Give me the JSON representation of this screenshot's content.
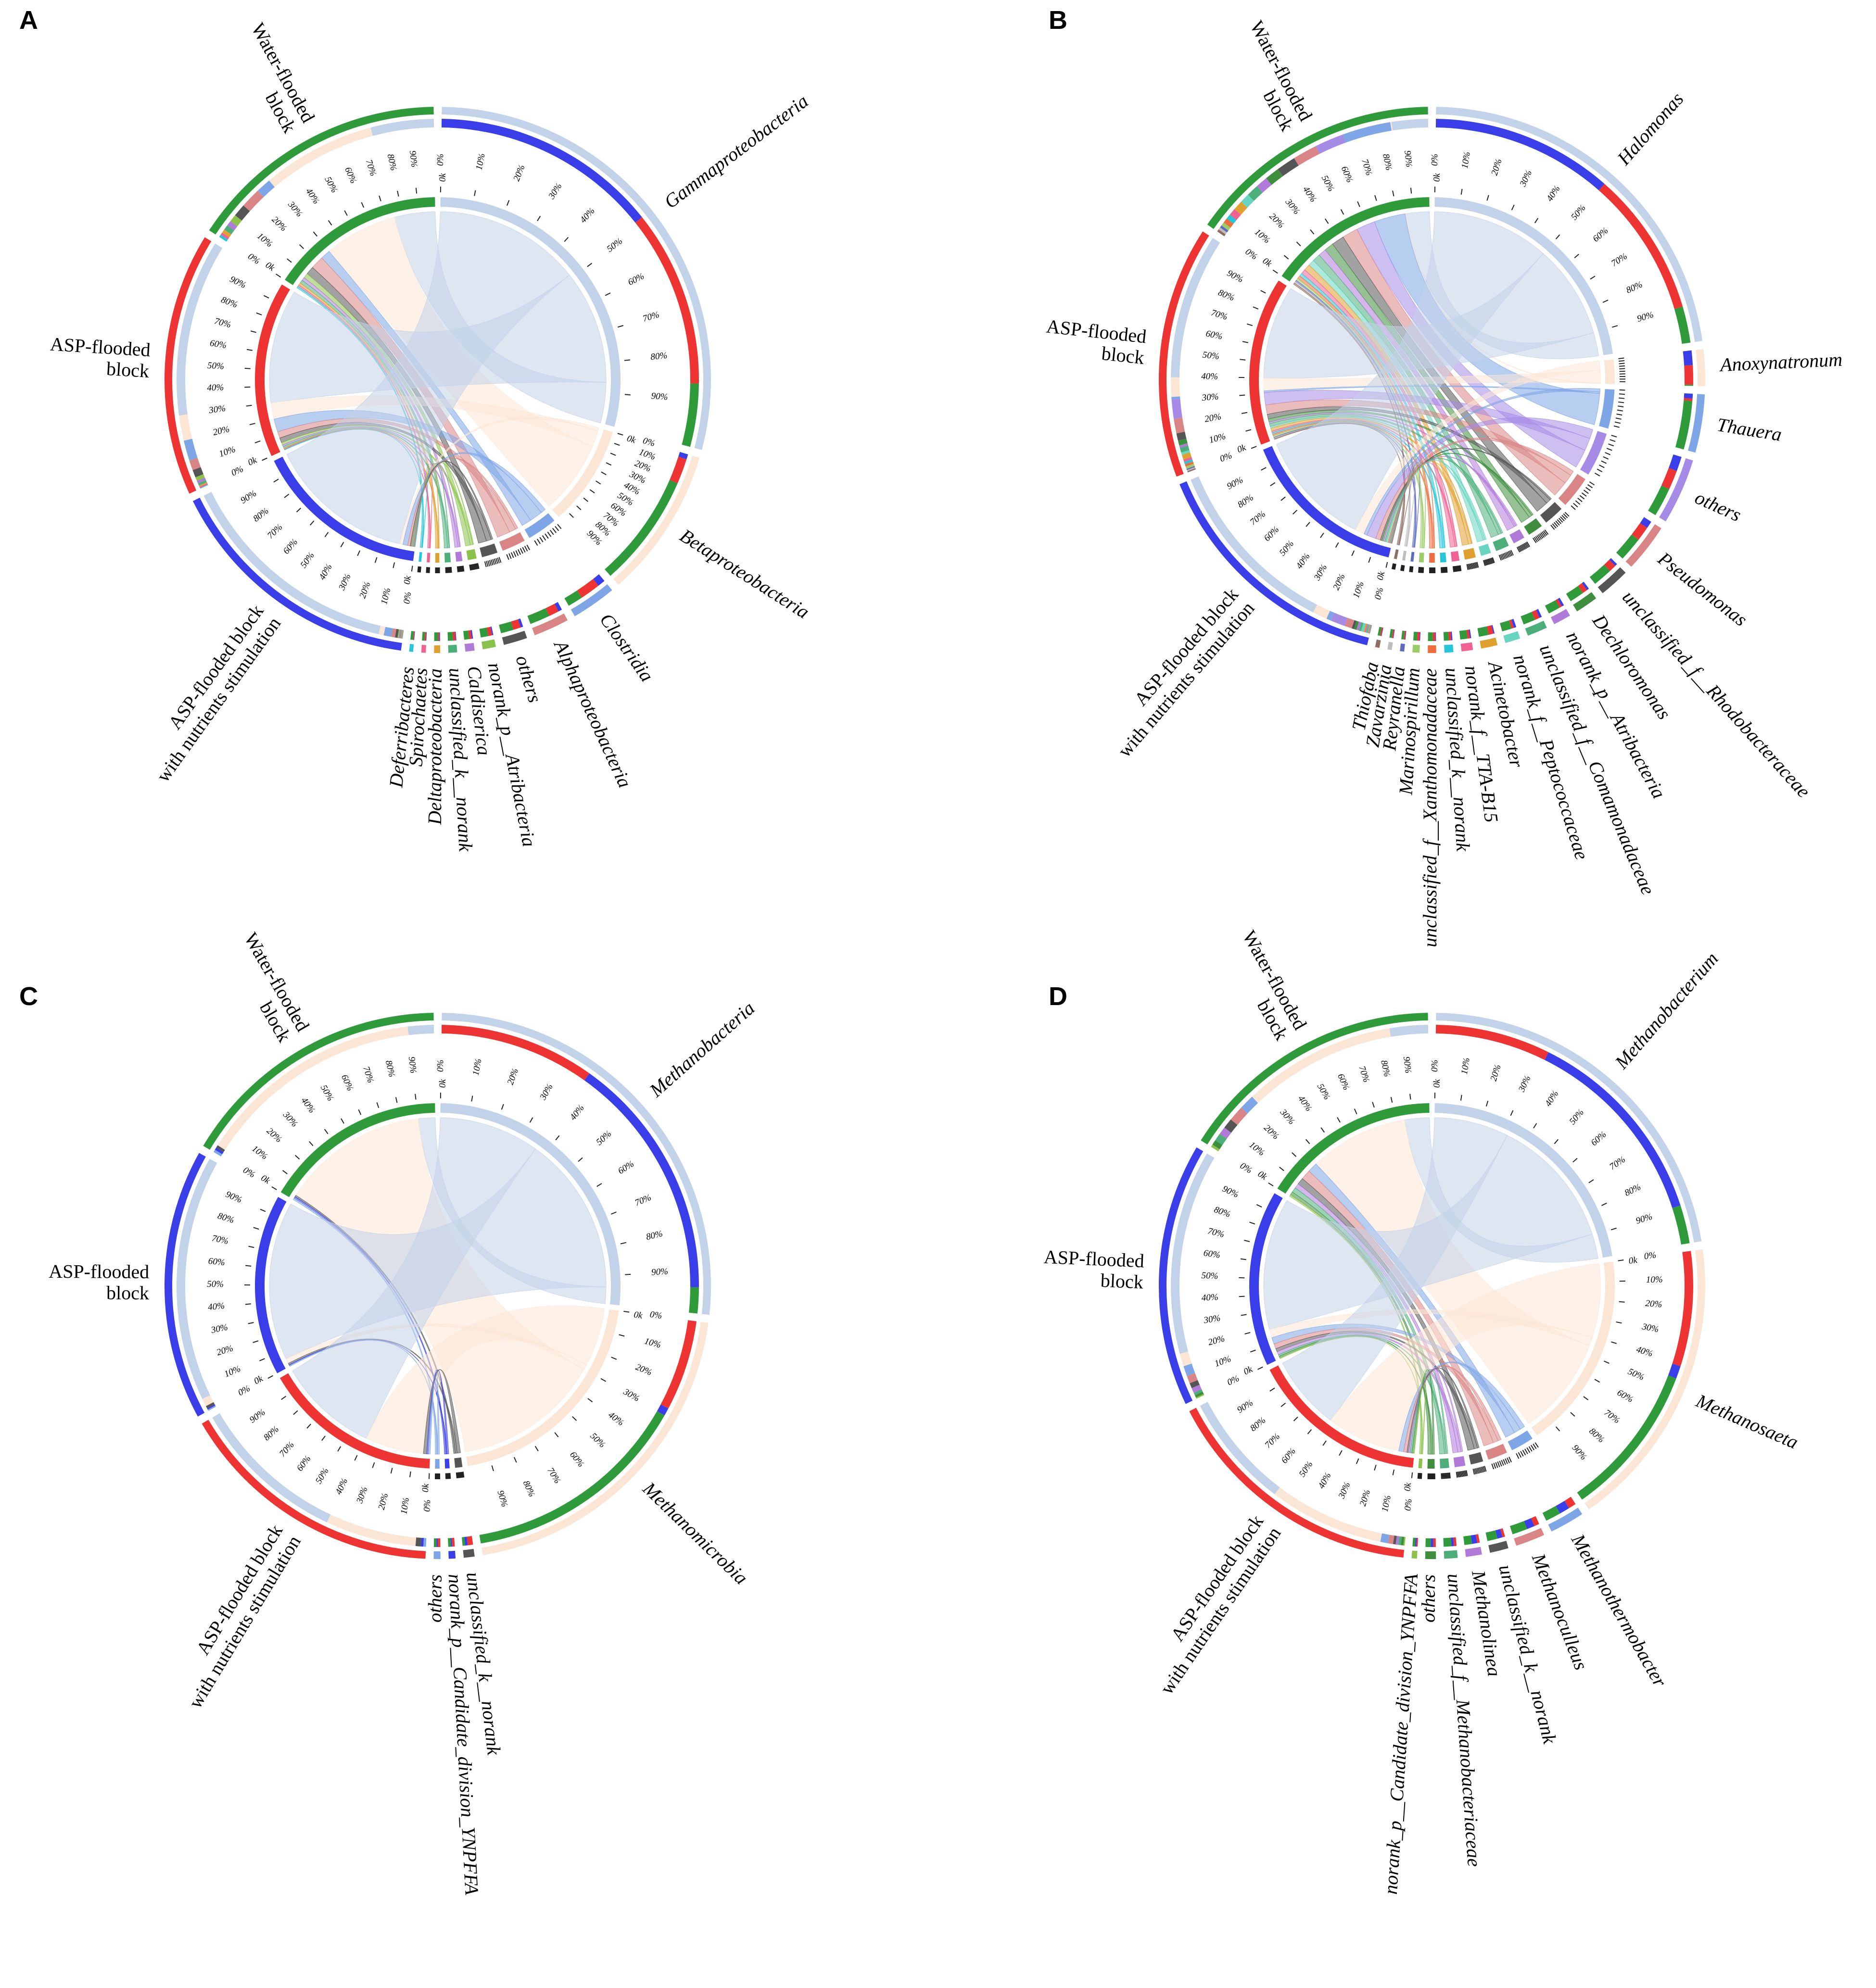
{
  "chart_data": [
    {
      "type": "chord",
      "panel": "A",
      "start_label": "0k",
      "ticks": [
        {
          "value": 0,
          "label": "0%"
        },
        {
          "value": 10,
          "label": "10%"
        },
        {
          "value": 20,
          "label": "20%"
        },
        {
          "value": 30,
          "label": "30%"
        },
        {
          "value": 40,
          "label": "40%"
        },
        {
          "value": 50,
          "label": "50%"
        },
        {
          "value": 60,
          "label": "60%"
        },
        {
          "value": 70,
          "label": "70%"
        },
        {
          "value": 80,
          "label": "80%"
        },
        {
          "value": 90,
          "label": "90%"
        }
      ],
      "groups": [
        {
          "name": [
            "Water-flooded",
            "block"
          ],
          "color": "#2e9a3a"
        },
        {
          "name": [
            "ASP-flooded",
            "block"
          ],
          "color": "#ee3333"
        },
        {
          "name": [
            "ASP-flooded block",
            "with nutrients stimulation"
          ],
          "color": "#3a3ee8"
        }
      ],
      "taxa": [
        {
          "name": "Gammaproteobacteria",
          "color": "#c2d2e8"
        },
        {
          "name": "Betaproteobacteria",
          "color": "#fbe6d6"
        },
        {
          "name": "Clostridia",
          "color": "#7ea6e6"
        },
        {
          "name": "Alphaproteobacteria",
          "color": "#d98585"
        },
        {
          "name": "others",
          "color": "#555555"
        },
        {
          "name": "norank_p__Atribacteria",
          "color": "#8bc34a"
        },
        {
          "name": "Caldiserica",
          "color": "#b07ad9"
        },
        {
          "name": "unclassified_k__norank",
          "color": "#4caf7a"
        },
        {
          "name": "Deltaproteobacteria",
          "color": "#e0a030"
        },
        {
          "name": "Spirochaetes",
          "color": "#f06292"
        },
        {
          "name": "Deferribacteres",
          "color": "#26c6da"
        }
      ],
      "values": [
        [
          25,
          45,
          6,
          8,
          5,
          3,
          2,
          2,
          1.5,
          1,
          1
        ],
        [
          70,
          10,
          8,
          4,
          3,
          1.5,
          1,
          1,
          0.5,
          0.5,
          0.3
        ],
        [
          90,
          2,
          3,
          1.5,
          1,
          0.5,
          0.5,
          0.3,
          0.3,
          0.2,
          0.2
        ]
      ]
    },
    {
      "type": "chord",
      "panel": "B",
      "start_label": "0k",
      "ticks": [
        {
          "value": 0,
          "label": "0%"
        },
        {
          "value": 10,
          "label": "10%"
        },
        {
          "value": 20,
          "label": "20%"
        },
        {
          "value": 30,
          "label": "30%"
        },
        {
          "value": 40,
          "label": "40%"
        },
        {
          "value": 50,
          "label": "50%"
        },
        {
          "value": 60,
          "label": "60%"
        },
        {
          "value": 70,
          "label": "70%"
        },
        {
          "value": 80,
          "label": "80%"
        },
        {
          "value": 90,
          "label": "90%"
        }
      ],
      "groups": [
        {
          "name": [
            "Water-flooded",
            "block"
          ],
          "color": "#2e9a3a"
        },
        {
          "name": [
            "ASP-flooded",
            "block"
          ],
          "color": "#ee3333"
        },
        {
          "name": [
            "ASP-flooded block",
            "with nutrients stimulation"
          ],
          "color": "#3a3ee8"
        }
      ],
      "taxa": [
        {
          "name": "Halomonas",
          "color": "#c2d2e8"
        },
        {
          "name": "Anoxynatronum",
          "color": "#fbe6d6"
        },
        {
          "name": "Thauera",
          "color": "#7ea6e6"
        },
        {
          "name": "others",
          "color": "#a58be6"
        },
        {
          "name": "Pseudomonas",
          "color": "#d98585"
        },
        {
          "name": "unclassified_f__Rhodobacteraceae",
          "color": "#555555"
        },
        {
          "name": "Dechloromonas",
          "color": "#3e8e3e"
        },
        {
          "name": "norank_p__Atribacteria",
          "color": "#b07ad9"
        },
        {
          "name": "unclassified_f__Comamonadaceae",
          "color": "#4caf7a"
        },
        {
          "name": "norank_f__Peptococcaceae",
          "color": "#67d5c0"
        },
        {
          "name": "Acinetobacter",
          "color": "#e0a030"
        },
        {
          "name": "norank_f__TTA-B15",
          "color": "#f06292"
        },
        {
          "name": "unclassified_k__norank",
          "color": "#26c6da"
        },
        {
          "name": "unclassified_f__Xanthomonadaceae",
          "color": "#ef6c3c"
        },
        {
          "name": "Marinospirillum",
          "color": "#9ccc65"
        },
        {
          "name": "Reyranella",
          "color": "#5c6bc0"
        },
        {
          "name": "Zavarzinia",
          "color": "#bdbdbd"
        },
        {
          "name": "Thiofaba",
          "color": "#8d6e63"
        }
      ],
      "values": [
        [
          15,
          0.5,
          20,
          12,
          10,
          8,
          6,
          5,
          5,
          4,
          4,
          3,
          2,
          2,
          1.5,
          1,
          1,
          1
        ],
        [
          60,
          8,
          1,
          8,
          6,
          3,
          2,
          1,
          2,
          1,
          2,
          1,
          1,
          1,
          1,
          0.5,
          0.5,
          0.5
        ],
        [
          75,
          6,
          2,
          6,
          3,
          1,
          1,
          1,
          1,
          1,
          0.5,
          0.5,
          0.5,
          0.3,
          0.3,
          0.2,
          0.2,
          0.2
        ]
      ]
    },
    {
      "type": "chord",
      "panel": "C",
      "start_label": "0k",
      "ticks": [
        {
          "value": 0,
          "label": "0%"
        },
        {
          "value": 10,
          "label": "10%"
        },
        {
          "value": 20,
          "label": "20%"
        },
        {
          "value": 30,
          "label": "30%"
        },
        {
          "value": 40,
          "label": "40%"
        },
        {
          "value": 50,
          "label": "50%"
        },
        {
          "value": 60,
          "label": "60%"
        },
        {
          "value": 70,
          "label": "70%"
        },
        {
          "value": 80,
          "label": "80%"
        },
        {
          "value": 90,
          "label": "90%"
        }
      ],
      "groups": [
        {
          "name": [
            "Water-flooded",
            "block"
          ],
          "color": "#2e9a3a"
        },
        {
          "name": [
            "ASP-flooded",
            "block"
          ],
          "color": "#3a3ee8"
        },
        {
          "name": [
            "ASP-flooded block",
            "with nutrients stimulation"
          ],
          "color": "#ee3333"
        }
      ],
      "taxa": [
        {
          "name": "Methanobacteria",
          "color": "#c2d2e8"
        },
        {
          "name": "Methanomicrobia",
          "color": "#fbe6d6"
        },
        {
          "name": "unclassified_k__norank",
          "color": "#555555"
        },
        {
          "name": "norank_p__Candidate_division_YNPFFA",
          "color": "#3a3ee8"
        },
        {
          "name": "others",
          "color": "#7ea6e6"
        }
      ],
      "values": [
        [
          10,
          88,
          1,
          1,
          1
        ],
        [
          95,
          3,
          1,
          0.5,
          0.5
        ],
        [
          60,
          35,
          2,
          1,
          1
        ]
      ]
    },
    {
      "type": "chord",
      "panel": "D",
      "start_label": "0k",
      "ticks": [
        {
          "value": 0,
          "label": "0%"
        },
        {
          "value": 10,
          "label": "10%"
        },
        {
          "value": 20,
          "label": "20%"
        },
        {
          "value": 30,
          "label": "30%"
        },
        {
          "value": 40,
          "label": "40%"
        },
        {
          "value": 50,
          "label": "50%"
        },
        {
          "value": 60,
          "label": "60%"
        },
        {
          "value": 70,
          "label": "70%"
        },
        {
          "value": 80,
          "label": "80%"
        },
        {
          "value": 90,
          "label": "90%"
        }
      ],
      "groups": [
        {
          "name": [
            "Water-flooded",
            "block"
          ],
          "color": "#2e9a3a"
        },
        {
          "name": [
            "ASP-flooded",
            "block"
          ],
          "color": "#3a3ee8"
        },
        {
          "name": [
            "ASP-flooded block",
            "with nutrients stimulation"
          ],
          "color": "#ee3333"
        }
      ],
      "taxa": [
        {
          "name": "Methanobacterium",
          "color": "#c2d2e8"
        },
        {
          "name": "Methanosaeta",
          "color": "#fbe6d6"
        },
        {
          "name": "Methanothermobacter",
          "color": "#7ea6e6"
        },
        {
          "name": "Methanoculleus",
          "color": "#d98585"
        },
        {
          "name": "unclassified_k__norank",
          "color": "#555555"
        },
        {
          "name": "Methanolinea",
          "color": "#b07ad9"
        },
        {
          "name": "unclassified_f__Methanobacteriaceae",
          "color": "#4caf7a"
        },
        {
          "name": "others",
          "color": "#3e8e3e"
        },
        {
          "name": "norank_p__Candidate_division_YNPFFA",
          "color": "#8bc34a"
        }
      ],
      "values": [
        [
          15,
          60,
          6,
          6,
          4,
          3,
          3,
          2,
          1
        ],
        [
          80,
          5,
          4,
          3,
          2,
          2,
          1,
          1,
          0.5
        ],
        [
          45,
          45,
          3,
          2,
          1,
          1,
          1,
          1,
          0.5
        ]
      ]
    }
  ]
}
